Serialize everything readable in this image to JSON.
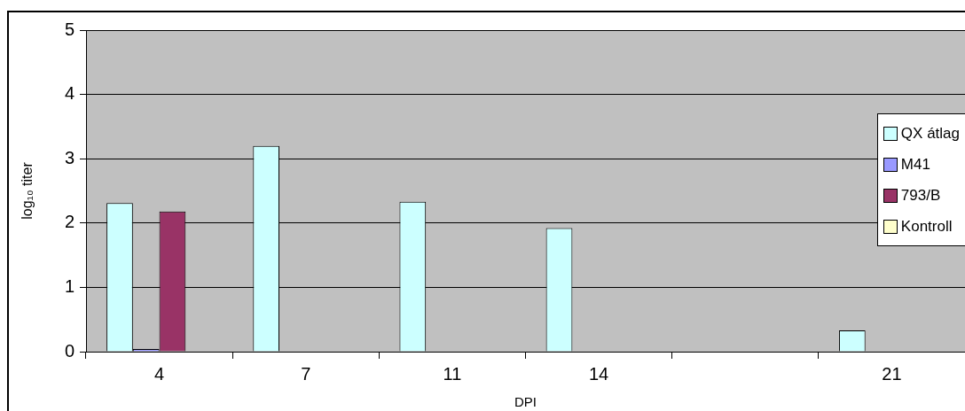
{
  "chart_data": {
    "type": "bar",
    "xlabel": "DPI",
    "ylabel": "log₁₀ titer",
    "categories": [
      "4",
      "7",
      "11",
      "14",
      null,
      "21"
    ],
    "series": [
      {
        "name": "QX átlag",
        "color": "#ccffff",
        "values": [
          2.31,
          3.2,
          2.33,
          1.92,
          null,
          0.33
        ]
      },
      {
        "name": "M41",
        "color": "#9999ff",
        "values": [
          0.04,
          null,
          null,
          null,
          null,
          null
        ]
      },
      {
        "name": "793/B",
        "color": "#993366",
        "values": [
          2.18,
          null,
          null,
          null,
          null,
          null
        ]
      },
      {
        "name": "Kontroll",
        "color": "#ffffcc",
        "values": [
          null,
          null,
          null,
          null,
          null,
          null
        ]
      }
    ],
    "ylim": [
      0,
      5
    ],
    "yticks": [
      0,
      1,
      2,
      3,
      4,
      5
    ],
    "grid": "y",
    "legend": "right"
  }
}
